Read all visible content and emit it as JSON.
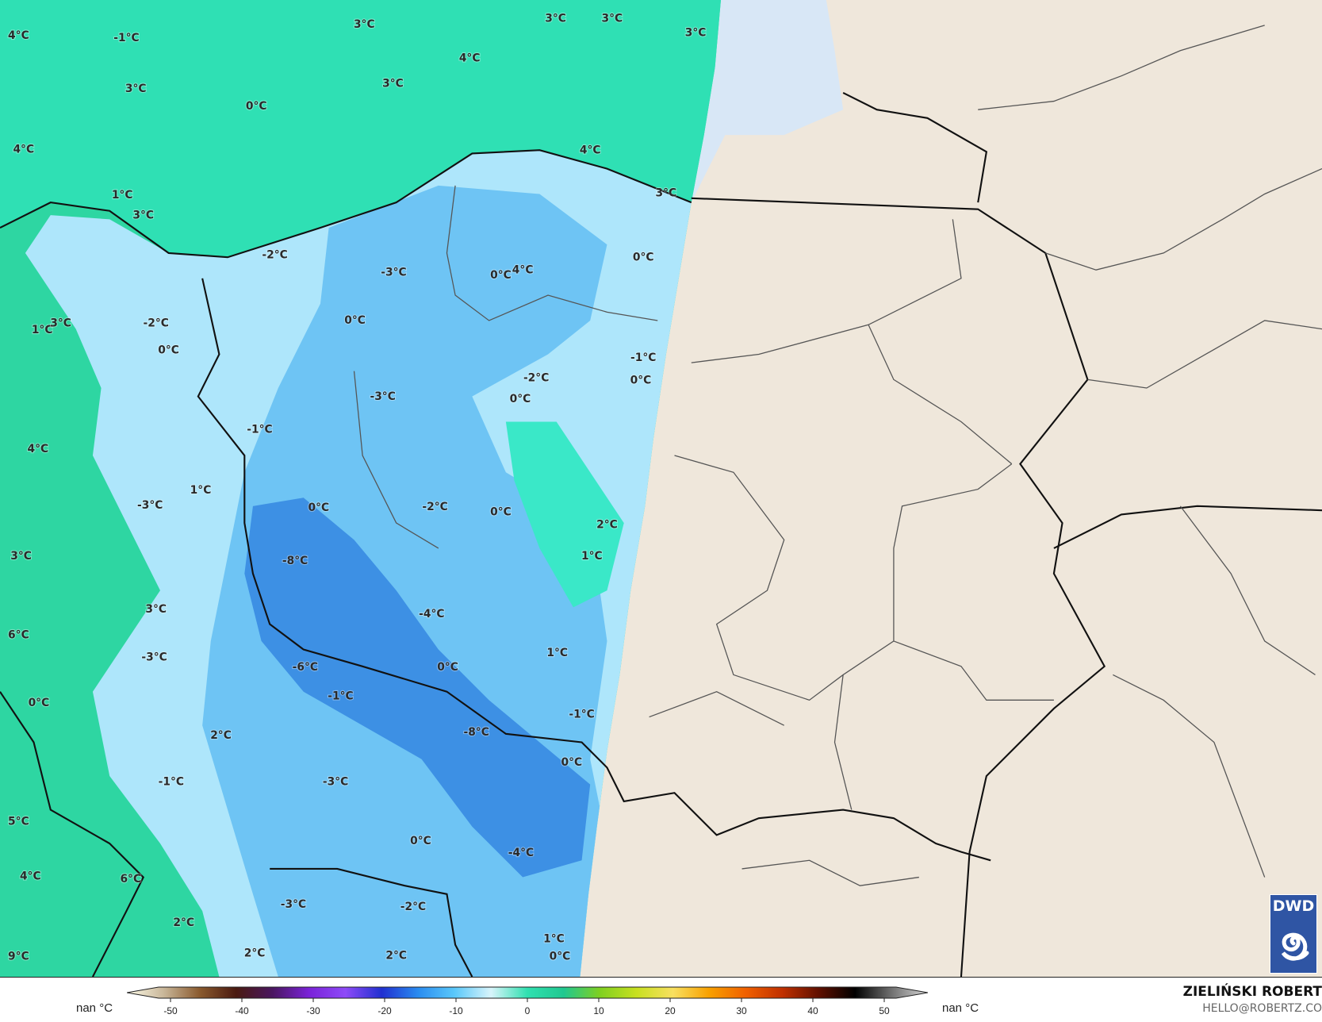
{
  "map": {
    "colors": {
      "sea_warm": "#2fe0b4",
      "land_green": "#2ed6a2",
      "cold_light": "#aee6fb",
      "cold_mid": "#6ec4f4",
      "cold_dark": "#3d90e4",
      "no_data_land": "#efe7db",
      "no_data_sea": "#d8e7f6",
      "border": "#111111"
    },
    "temperature_labels": [
      "4°C",
      "-1°C",
      "3°C",
      "3°C",
      "3°C",
      "3°C",
      "4°C",
      "3°C",
      "3°C",
      "0°C",
      "4°C",
      "4°C",
      "1°C",
      "3°C",
      "3°C",
      "-2°C",
      "-3°C",
      "0°C",
      "4°C",
      "0°C",
      "1°C",
      "3°C",
      "-2°C",
      "0°C",
      "0°C",
      "-1°C",
      "0°C",
      "-2°C",
      "0°C",
      "-3°C",
      "-1°C",
      "4°C",
      "1°C",
      "-3°C",
      "0°C",
      "-2°C",
      "0°C",
      "2°C",
      "1°C",
      "3°C",
      "-8°C",
      "3°C",
      "-4°C",
      "6°C",
      "-3°C",
      "1°C",
      "-6°C",
      "0°C",
      "0°C",
      "-1°C",
      "-1°C",
      "-8°C",
      "2°C",
      "0°C",
      "-1°C",
      "-3°C",
      "5°C",
      "0°C",
      "-4°C",
      "4°C",
      "6°C",
      "-3°C",
      "-2°C",
      "2°C",
      "1°C",
      "9°C",
      "2°C",
      "2°C",
      "0°C"
    ]
  },
  "logo": {
    "text": "DWD",
    "icon": "spiral-icon"
  },
  "colorbar": {
    "ticks": [
      "-50",
      "-40",
      "-30",
      "-20",
      "-10",
      "0",
      "10",
      "20",
      "30",
      "40",
      "50"
    ],
    "range": [
      -55,
      55
    ],
    "left_label": "nan °C",
    "right_label": "nan °C",
    "stops": [
      "#fdfbe8",
      "#c9b79a",
      "#8a5a2e",
      "#4a1a10",
      "#4a1660",
      "#7a22d8",
      "#8e4af8",
      "#2030d0",
      "#2a8cf0",
      "#5ac8fa",
      "#d8f4fb",
      "#30e0b0",
      "#20c890",
      "#80d020",
      "#c8e020",
      "#f8e060",
      "#f8a000",
      "#f06000",
      "#c03000",
      "#601000",
      "#000000",
      "#707070",
      "#d8d8d8"
    ]
  },
  "credits": {
    "author": "ZIELIŃSKI ROBERT",
    "email": "HELLO@ROBERTZ.CO"
  }
}
